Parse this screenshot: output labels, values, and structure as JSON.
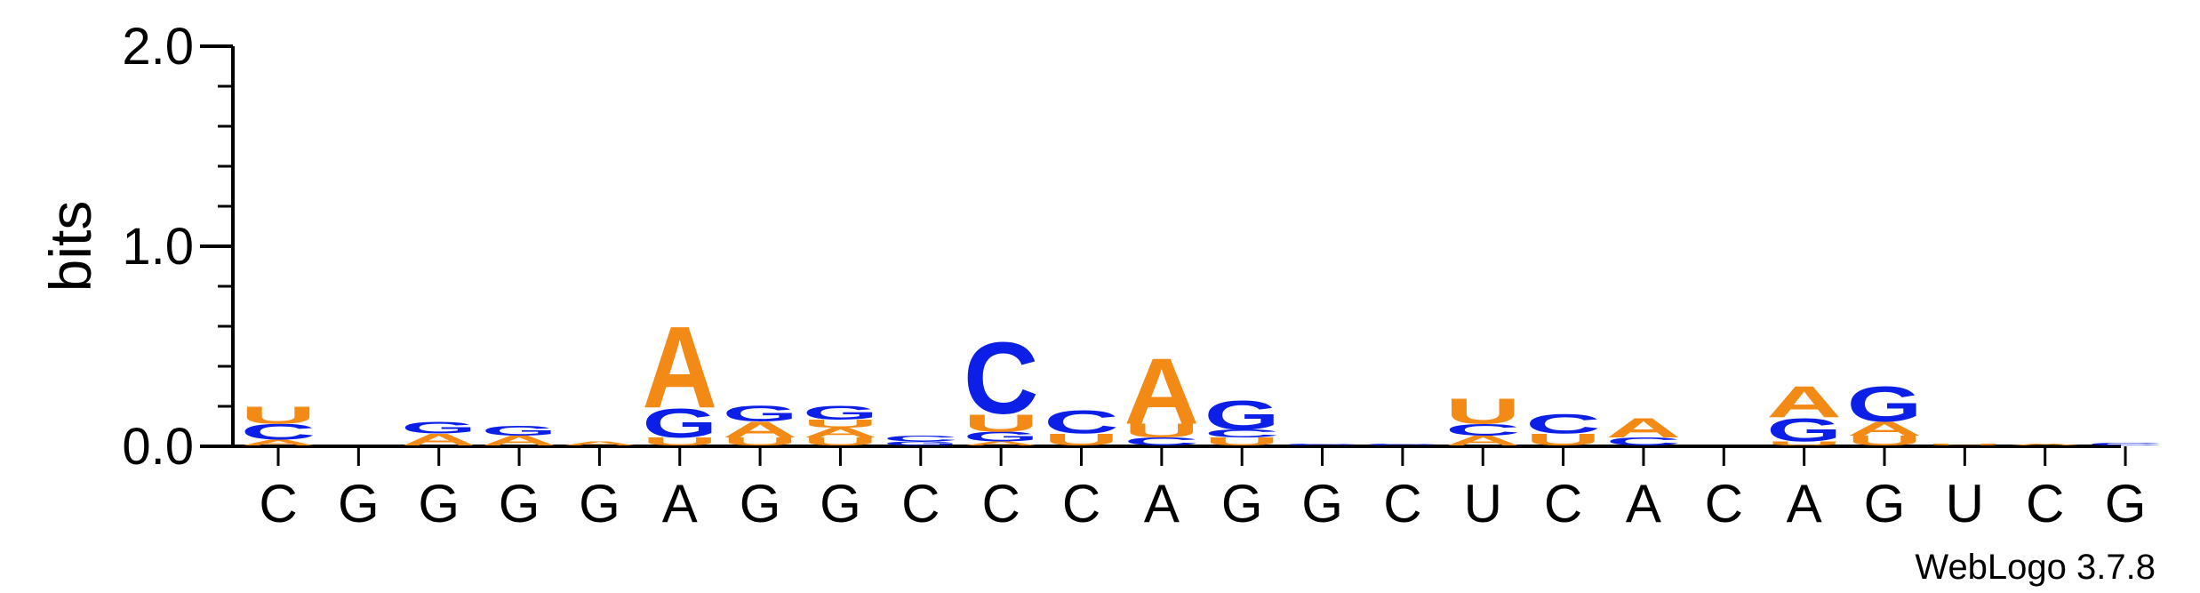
{
  "footer": "WebLogo 3.7.8",
  "colors": {
    "A": "#f38a16",
    "U": "#f38a16",
    "C": "#0b1fe6",
    "G": "#0b1fe6"
  },
  "chart_data": {
    "type": "sequence-logo",
    "ylabel": "bits",
    "ylim": [
      0,
      2.0
    ],
    "yticks": [
      "0.0",
      "1.0",
      "2.0"
    ],
    "consensus": [
      "C",
      "G",
      "G",
      "G",
      "G",
      "A",
      "G",
      "G",
      "C",
      "C",
      "C",
      "A",
      "G",
      "G",
      "C",
      "U",
      "C",
      "A",
      "C",
      "A",
      "G",
      "U",
      "C",
      "G"
    ],
    "positions": [
      [
        {
          "l": "A",
          "h": 0.03
        },
        {
          "l": "C",
          "h": 0.08
        },
        {
          "l": "U",
          "h": 0.09
        }
      ],
      [],
      [
        {
          "l": "A",
          "h": 0.06
        },
        {
          "l": "G",
          "h": 0.06
        }
      ],
      [
        {
          "l": "A",
          "h": 0.05
        },
        {
          "l": "G",
          "h": 0.05
        }
      ],
      [
        {
          "l": "A",
          "h": 0.02
        }
      ],
      [
        {
          "l": "U",
          "h": 0.04
        },
        {
          "l": "G",
          "h": 0.15
        },
        {
          "l": "A",
          "h": 0.42
        }
      ],
      [
        {
          "l": "U",
          "h": 0.04
        },
        {
          "l": "A",
          "h": 0.08
        },
        {
          "l": "G",
          "h": 0.08
        }
      ],
      [
        {
          "l": "U",
          "h": 0.04
        },
        {
          "l": "A",
          "h": 0.05
        },
        {
          "l": "U",
          "h": 0.04
        },
        {
          "l": "G",
          "h": 0.07
        }
      ],
      [
        {
          "l": "G",
          "h": 0.02
        },
        {
          "l": "C",
          "h": 0.03
        }
      ],
      [
        {
          "l": "A",
          "h": 0.02
        },
        {
          "l": "G",
          "h": 0.05
        },
        {
          "l": "U",
          "h": 0.09
        },
        {
          "l": "C",
          "h": 0.37
        }
      ],
      [
        {
          "l": "U",
          "h": 0.06
        },
        {
          "l": "C",
          "h": 0.12
        }
      ],
      [
        {
          "l": "C",
          "h": 0.04
        },
        {
          "l": "U",
          "h": 0.07
        },
        {
          "l": "A",
          "h": 0.34
        }
      ],
      [
        {
          "l": "U",
          "h": 0.04
        },
        {
          "l": "C",
          "h": 0.04
        },
        {
          "l": "G",
          "h": 0.15
        }
      ],
      [
        {
          "l": "C",
          "h": 0.01
        }
      ],
      [
        {
          "l": "C",
          "h": 0.01
        }
      ],
      [
        {
          "l": "A",
          "h": 0.05
        },
        {
          "l": "C",
          "h": 0.06
        },
        {
          "l": "U",
          "h": 0.13
        }
      ],
      [
        {
          "l": "U",
          "h": 0.06
        },
        {
          "l": "C",
          "h": 0.1
        }
      ],
      [
        {
          "l": "C",
          "h": 0.04
        },
        {
          "l": "A",
          "h": 0.1
        }
      ],
      [],
      [
        {
          "l": "U",
          "h": 0.02
        },
        {
          "l": "G",
          "h": 0.12
        },
        {
          "l": "A",
          "h": 0.16
        }
      ],
      [
        {
          "l": "U",
          "h": 0.05
        },
        {
          "l": "A",
          "h": 0.07
        },
        {
          "l": "G",
          "h": 0.18
        }
      ],
      [
        {
          "l": "U",
          "h": 0.01
        }
      ],
      [
        {
          "l": "A",
          "h": 0.01
        }
      ],
      [
        {
          "l": "C",
          "h": 0.015
        }
      ]
    ]
  }
}
